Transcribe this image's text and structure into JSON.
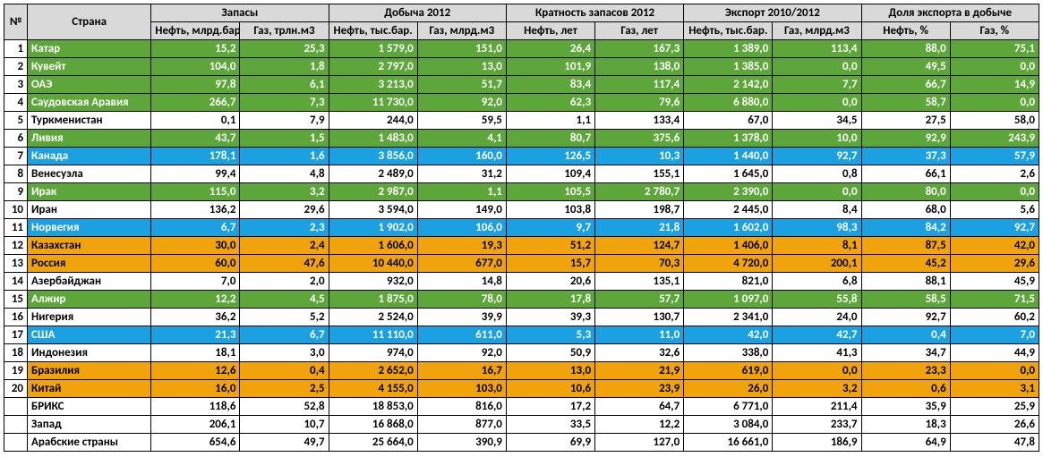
{
  "colors": {
    "green_bg": "#5da639",
    "green_fg": "#ffffff",
    "orange_bg": "#f0a30a",
    "orange_fg": "#000000",
    "blue_bg": "#1ba1e2",
    "blue_fg": "#ffffff",
    "white_bg": "#ffffff",
    "white_fg": "#000000"
  },
  "header": {
    "num": "№",
    "country": "Страна",
    "groups": [
      {
        "label": "Запасы",
        "sub": [
          "Нефть, млрд.бар.",
          "Газ, трлн.м3"
        ]
      },
      {
        "label": "Добыча 2012",
        "sub": [
          "Нефть, тыс.бар.",
          "Газ, млрд.м3"
        ]
      },
      {
        "label": "Кратность запасов 2012",
        "sub": [
          "Нефть, лет",
          "Газ, лет"
        ]
      },
      {
        "label": "Экспорт 2010/2012",
        "sub": [
          "Нефть, тыс.бар.",
          "Газ, млрд.м3"
        ]
      },
      {
        "label": "Доля экспорта в добыче",
        "sub": [
          "Нефть, %",
          "Газ, %"
        ]
      }
    ]
  },
  "rows": [
    {
      "n": "1",
      "country": "Катар",
      "color": "green",
      "v": [
        "15,2",
        "25,3",
        "1 579,0",
        "151,0",
        "26,4",
        "167,3",
        "1 389,0",
        "113,4",
        "88,0",
        "75,1"
      ]
    },
    {
      "n": "2",
      "country": "Кувейт",
      "color": "green",
      "v": [
        "104,0",
        "1,8",
        "2 797,0",
        "13,0",
        "101,9",
        "138,0",
        "1 385,0",
        "0,0",
        "49,5",
        "0,0"
      ]
    },
    {
      "n": "3",
      "country": "ОАЭ",
      "color": "green",
      "v": [
        "97,8",
        "6,1",
        "3 213,0",
        "51,7",
        "83,4",
        "117,4",
        "2 142,0",
        "7,7",
        "66,7",
        "14,9"
      ]
    },
    {
      "n": "4",
      "country": "Саудовская Аравия",
      "color": "green",
      "v": [
        "266,7",
        "7,3",
        "11 730,0",
        "92,0",
        "62,3",
        "79,6",
        "6 880,0",
        "0,0",
        "58,7",
        "0,0"
      ]
    },
    {
      "n": "5",
      "country": "Туркменистан",
      "color": "white",
      "v": [
        "0,1",
        "7,9",
        "244,0",
        "59,5",
        "1,1",
        "133,4",
        "67,0",
        "34,5",
        "27,5",
        "58,0"
      ]
    },
    {
      "n": "6",
      "country": "Ливия",
      "color": "green",
      "v": [
        "43,7",
        "1,5",
        "1 483,0",
        "4,1",
        "80,7",
        "375,6",
        "1 378,0",
        "10,0",
        "92,9",
        "243,9"
      ]
    },
    {
      "n": "7",
      "country": "Канада",
      "color": "blue",
      "v": [
        "178,1",
        "1,6",
        "3 856,0",
        "160,0",
        "126,5",
        "10,3",
        "1 440,0",
        "92,7",
        "37,3",
        "57,9"
      ]
    },
    {
      "n": "8",
      "country": "Венесуэла",
      "color": "white",
      "v": [
        "99,4",
        "4,8",
        "2 489,0",
        "31,2",
        "109,4",
        "155,1",
        "1 645,0",
        "0,8",
        "66,1",
        "2,6"
      ]
    },
    {
      "n": "9",
      "country": "Ирак",
      "color": "green",
      "v": [
        "115,0",
        "3,2",
        "2 987,0",
        "1,1",
        "105,5",
        "2 780,7",
        "2 390,0",
        "0,0",
        "80,0",
        "0,0"
      ]
    },
    {
      "n": "10",
      "country": "Иран",
      "color": "white",
      "v": [
        "136,2",
        "29,6",
        "3 594,0",
        "149,0",
        "103,8",
        "198,7",
        "2 445,0",
        "8,4",
        "68,0",
        "5,6"
      ]
    },
    {
      "n": "11",
      "country": "Норвегия",
      "color": "blue",
      "v": [
        "6,7",
        "2,3",
        "1 902,0",
        "106,0",
        "9,7",
        "21,8",
        "1 602,0",
        "98,3",
        "84,2",
        "92,7"
      ]
    },
    {
      "n": "12",
      "country": "Казахстан",
      "color": "orange",
      "v": [
        "30,0",
        "2,4",
        "1 606,0",
        "19,3",
        "51,2",
        "124,7",
        "1 406,0",
        "8,1",
        "87,5",
        "42,0"
      ]
    },
    {
      "n": "13",
      "country": "Россия",
      "color": "orange",
      "v": [
        "60,0",
        "47,6",
        "10 440,0",
        "677,0",
        "15,7",
        "70,3",
        "4 720,0",
        "200,1",
        "45,2",
        "29,6"
      ]
    },
    {
      "n": "14",
      "country": "Азербайджан",
      "color": "white",
      "v": [
        "7,0",
        "2,0",
        "932,0",
        "14,8",
        "20,6",
        "135,1",
        "821,0",
        "6,8",
        "88,1",
        "45,9"
      ]
    },
    {
      "n": "15",
      "country": "Алжир",
      "color": "green",
      "v": [
        "12,2",
        "4,5",
        "1 875,0",
        "78,0",
        "17,8",
        "57,7",
        "1 097,0",
        "55,8",
        "58,5",
        "71,5"
      ]
    },
    {
      "n": "16",
      "country": "Нигерия",
      "color": "white",
      "v": [
        "36,2",
        "5,2",
        "2 524,0",
        "39,9",
        "39,3",
        "130,7",
        "2 341,0",
        "24,0",
        "92,7",
        "60,2"
      ]
    },
    {
      "n": "17",
      "country": "США",
      "color": "blue",
      "v": [
        "21,3",
        "6,7",
        "11 110,0",
        "611,0",
        "5,3",
        "11,0",
        "42,0",
        "42,7",
        "0,4",
        "7,0"
      ]
    },
    {
      "n": "18",
      "country": "Индонезия",
      "color": "white",
      "v": [
        "18,1",
        "3,0",
        "974,0",
        "92,0",
        "50,9",
        "32,6",
        "338,0",
        "41,3",
        "34,7",
        "44,9"
      ]
    },
    {
      "n": "19",
      "country": "Бразилия",
      "color": "orange",
      "v": [
        "12,6",
        "0,4",
        "2 652,0",
        "16,7",
        "13,0",
        "21,9",
        "619,0",
        "0,0",
        "23,3",
        "0,0"
      ]
    },
    {
      "n": "20",
      "country": "Китай",
      "color": "orange",
      "v": [
        "16,0",
        "2,5",
        "4 155,0",
        "103,0",
        "10,6",
        "23,9",
        "26,0",
        "3,2",
        "0,6",
        "3,1"
      ]
    }
  ],
  "summary": [
    {
      "country": "БРИКС",
      "v": [
        "118,6",
        "52,8",
        "18 853,0",
        "816,0",
        "17,2",
        "64,7",
        "6 771,0",
        "211,4",
        "35,9",
        "25,9"
      ]
    },
    {
      "country": "Запад",
      "v": [
        "206,1",
        "10,7",
        "16 868,0",
        "877,0",
        "33,5",
        "12,2",
        "3 084,0",
        "233,7",
        "18,3",
        "26,6"
      ]
    },
    {
      "country": "Арабские страны",
      "v": [
        "654,6",
        "49,7",
        "25 664,0",
        "390,9",
        "69,9",
        "127,0",
        "16 661,0",
        "186,9",
        "64,9",
        "47,8"
      ]
    }
  ]
}
